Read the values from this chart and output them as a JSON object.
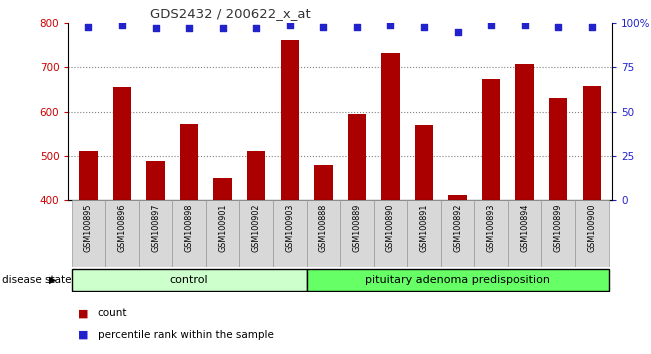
{
  "title": "GDS2432 / 200622_x_at",
  "categories": [
    "GSM100895",
    "GSM100896",
    "GSM100897",
    "GSM100898",
    "GSM100901",
    "GSM100902",
    "GSM100903",
    "GSM100888",
    "GSM100889",
    "GSM100890",
    "GSM100891",
    "GSM100892",
    "GSM100893",
    "GSM100894",
    "GSM100899",
    "GSM100900"
  ],
  "bar_values": [
    510,
    655,
    488,
    572,
    450,
    510,
    762,
    480,
    595,
    733,
    570,
    412,
    673,
    708,
    630,
    658
  ],
  "percentile_values": [
    98,
    99,
    97,
    97,
    97,
    97,
    99,
    98,
    98,
    99,
    98,
    95,
    99,
    99,
    98,
    98
  ],
  "bar_color": "#aa0000",
  "percentile_color": "#2222cc",
  "ylim_left": [
    400,
    800
  ],
  "ylim_right": [
    0,
    100
  ],
  "yticks_left": [
    400,
    500,
    600,
    700,
    800
  ],
  "yticks_right": [
    0,
    25,
    50,
    75,
    100
  ],
  "yticklabels_right": [
    "0",
    "25",
    "50",
    "75",
    "100%"
  ],
  "grid_ticks": [
    500,
    600,
    700
  ],
  "n_control": 7,
  "n_disease": 9,
  "control_label": "control",
  "disease_label": "pituitary adenoma predisposition",
  "disease_state_label": "disease state",
  "legend_count_label": "count",
  "legend_percentile_label": "percentile rank within the sample",
  "control_fill": "#ccffcc",
  "disease_fill": "#66ff66",
  "tick_label_color_left": "#cc0000",
  "tick_label_color_right": "#2222cc",
  "title_color": "#333333",
  "cell_bg": "#d8d8d8"
}
